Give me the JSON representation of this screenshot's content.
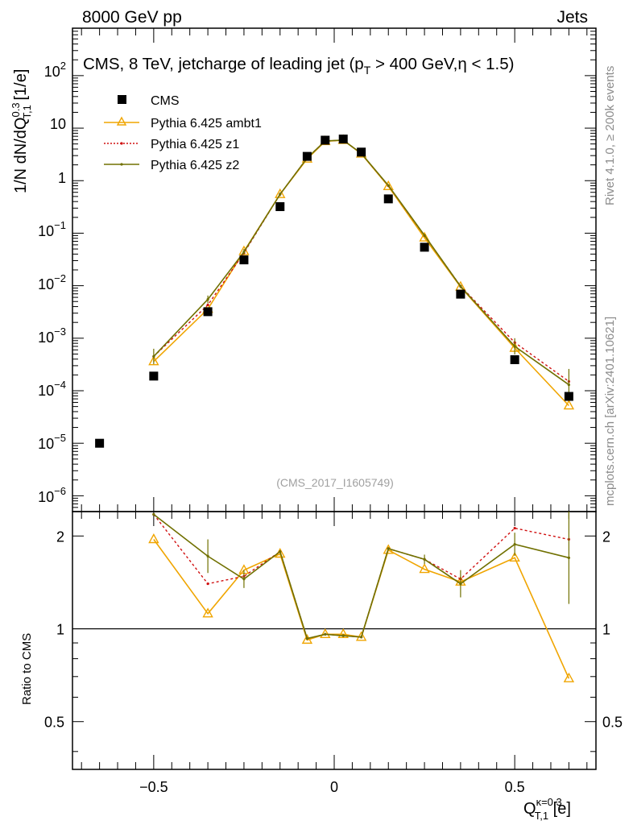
{
  "header": {
    "left": "8000 GeV pp",
    "right": "Jets",
    "side_top": "Rivet 4.1.0, ≥ 200k events",
    "side_bottom": "mcplots.cern.ch [arXiv:2401.10621]",
    "watermark": "(CMS_2017_I1605749)"
  },
  "chart_data": {
    "type": "scatter",
    "title": "CMS, 8 TeV, jetcharge of leading jet (pT > 400 GeV,η < 1.5)",
    "ylabel": "1/N dN/dQ_T,1^0.3 [1/e]",
    "xlabel": "Q_T,1^κ=0.3 [e]",
    "xlim": [
      -0.725,
      0.725
    ],
    "ylim": [
      5e-07,
      800
    ],
    "yscale": "log",
    "ratio_ylabel": "Ratio to CMS",
    "ratio_ylim": [
      0.35,
      2.4
    ],
    "ratio_yscale": "log",
    "x_ticks": [
      -0.5,
      0,
      0.5
    ],
    "x_tick_labels": [
      "−0.5",
      "0",
      "0.5"
    ],
    "y_tick_labels": [
      "10",
      "1"
    ],
    "ratio_y_ticks": [
      0.5,
      1,
      2
    ],
    "ratio_y_tick_labels": [
      "0.5",
      "1",
      "2"
    ],
    "x": [
      -0.65,
      -0.5,
      -0.35,
      -0.25,
      -0.15,
      -0.075,
      -0.025,
      0.025,
      0.075,
      0.15,
      0.25,
      0.35,
      0.5,
      0.65
    ],
    "series": [
      {
        "name": "CMS",
        "color": "#000000",
        "values": [
          1e-05,
          0.00019,
          0.0032,
          0.031,
          0.32,
          2.9,
          5.9,
          6.2,
          3.5,
          0.45,
          0.054,
          0.0069,
          0.00039,
          7.8e-05
        ]
      },
      {
        "name": "Pythia 6.425 ambt1",
        "color": "#f0a500",
        "values": [
          null,
          0.00036,
          0.0036,
          0.045,
          0.55,
          2.6,
          5.6,
          5.9,
          3.25,
          0.78,
          0.082,
          0.0095,
          0.00065,
          5.2e-05
        ],
        "ratio": [
          null,
          1.95,
          1.12,
          1.55,
          1.75,
          0.92,
          0.96,
          0.96,
          0.94,
          1.8,
          1.56,
          1.42,
          1.7,
          0.69
        ]
      },
      {
        "name": "Pythia 6.425 z1",
        "color": "#d01010",
        "values": [
          null,
          0.00045,
          0.0043,
          0.042,
          0.55,
          2.7,
          5.7,
          5.9,
          3.3,
          0.8,
          0.09,
          0.0098,
          0.00083,
          0.00015
        ],
        "ratio": [
          null,
          2.35,
          1.4,
          1.48,
          1.78,
          0.93,
          0.96,
          0.95,
          0.94,
          1.82,
          1.68,
          1.45,
          2.12,
          1.95
        ]
      },
      {
        "name": "Pythia 6.425 z2",
        "color": "#707000",
        "values": [
          null,
          0.00045,
          0.0055,
          0.044,
          0.55,
          2.7,
          5.7,
          5.9,
          3.3,
          0.81,
          0.091,
          0.0097,
          0.0007,
          0.00013
        ],
        "ratio": [
          null,
          2.35,
          1.72,
          1.45,
          1.78,
          0.93,
          0.96,
          0.95,
          0.94,
          1.82,
          1.68,
          1.4,
          1.88,
          1.7
        ],
        "error_top": [
          null,
          0.00063,
          0.0065,
          0.05,
          0.6,
          2.8,
          5.8,
          6.0,
          3.4,
          0.85,
          0.095,
          0.0105,
          0.001,
          0.00026
        ],
        "ratio_err_top": [
          null,
          2.35,
          1.95,
          1.55,
          1.8,
          0.94,
          0.97,
          0.96,
          0.95,
          1.84,
          1.74,
          1.55,
          2.05,
          2.4
        ]
      }
    ]
  }
}
